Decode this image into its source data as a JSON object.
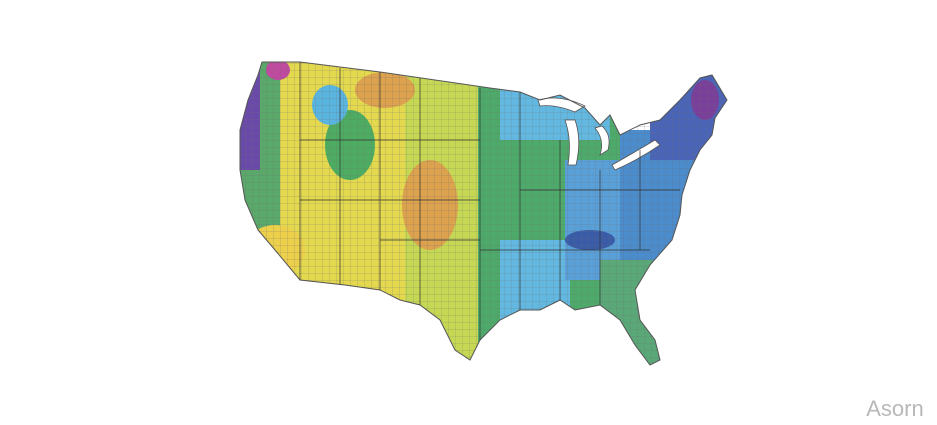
{
  "watermark": "Asorn"
}
